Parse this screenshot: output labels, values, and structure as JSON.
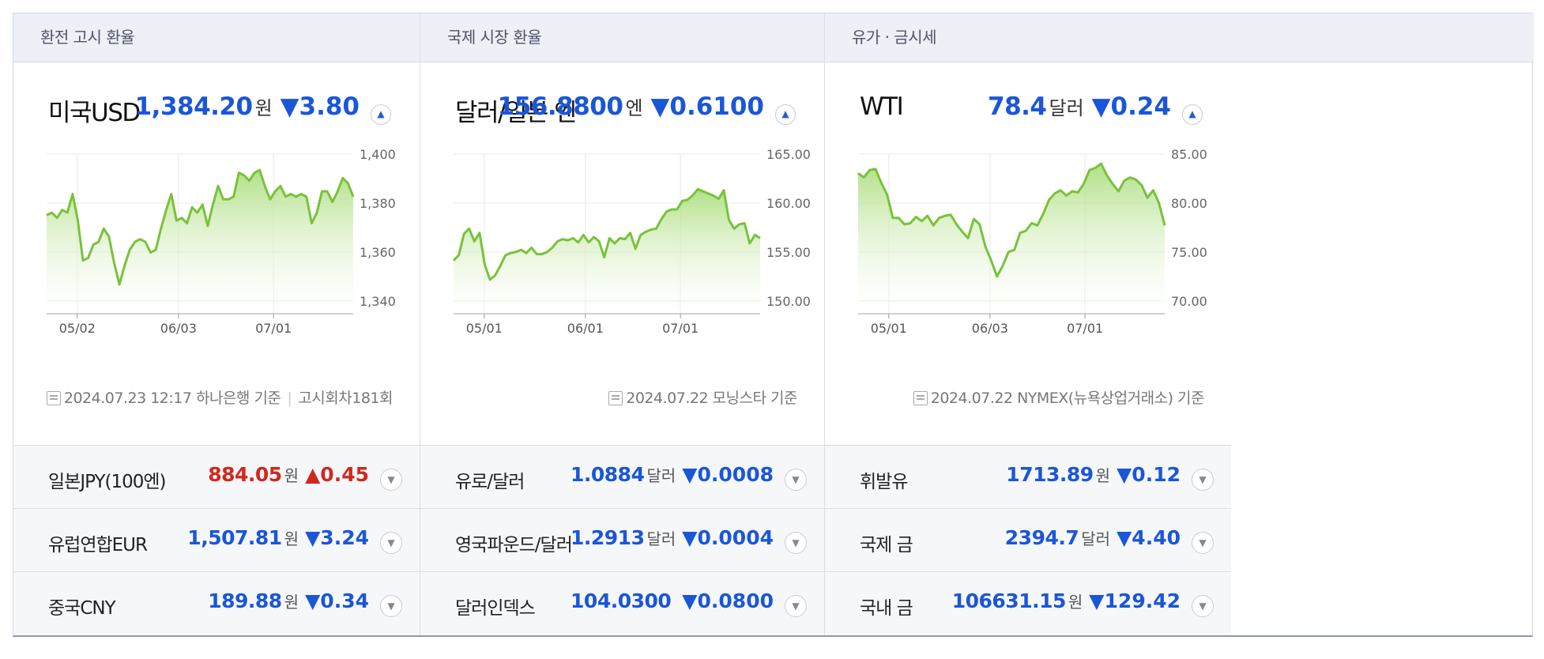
{
  "columns": [
    {
      "header": "환전 고시 환율",
      "main": {
        "title": "미국USD",
        "value": "1,384.20",
        "unit": "원",
        "change": "▼3.80",
        "direction": "down",
        "toggle_icon": "chevron-up-icon"
      },
      "chart_data": {
        "type": "area",
        "x_ticks": [
          "05/02",
          "06/03",
          "07/01"
        ],
        "y_ticks": [
          "1,400",
          "1,380",
          "1,360",
          "1,340"
        ],
        "ylim": [
          1340,
          1400
        ],
        "grid": true,
        "color": "#79c23b",
        "values": [
          1377,
          1378,
          1376,
          1379,
          1378,
          1385,
          1375,
          1360,
          1361,
          1366,
          1367,
          1372,
          1369,
          1359,
          1351,
          1358,
          1364,
          1367,
          1368,
          1367,
          1363,
          1364,
          1372,
          1379,
          1385,
          1375,
          1376,
          1374,
          1380,
          1378,
          1381,
          1373,
          1381,
          1388,
          1383,
          1383,
          1384,
          1393,
          1392,
          1390,
          1393,
          1394,
          1388,
          1383,
          1386,
          1388,
          1384,
          1385,
          1384,
          1385,
          1384,
          1374,
          1378,
          1386,
          1386,
          1382,
          1386,
          1391,
          1389,
          1384
        ]
      },
      "source": {
        "date": "2024.07.23 12:17 하나은행 기준",
        "extra": "고시회차181회",
        "icon": "document-icon"
      },
      "rows": [
        {
          "label": "일본JPY(100엔)",
          "value": "884.05",
          "unit": "원",
          "change": "▲0.45",
          "direction": "up"
        },
        {
          "label": "유럽연합EUR",
          "value": "1,507.81",
          "unit": "원",
          "change": "▼3.24",
          "direction": "down"
        },
        {
          "label": "중국CNY",
          "value": "189.88",
          "unit": "원",
          "change": "▼0.34",
          "direction": "down"
        }
      ]
    },
    {
      "header": "국제 시장 환율",
      "main": {
        "title": "달러/일본 엔",
        "value": "156.8800",
        "unit": "엔",
        "change": "▼0.6100",
        "direction": "down",
        "toggle_icon": "chevron-up-icon"
      },
      "chart_data": {
        "type": "area",
        "x_ticks": [
          "05/01",
          "06/01",
          "07/01"
        ],
        "y_ticks": [
          "165.00",
          "160.00",
          "155.00",
          "150.00"
        ],
        "ylim": [
          150,
          165
        ],
        "grid": true,
        "color": "#79c23b",
        "values": [
          155.0,
          155.5,
          157.5,
          158.0,
          156.8,
          157.6,
          154.6,
          153.2,
          153.6,
          154.5,
          155.5,
          155.7,
          155.8,
          156.0,
          155.7,
          156.2,
          155.6,
          155.6,
          155.8,
          156.2,
          156.8,
          157.0,
          156.9,
          157.1,
          156.7,
          157.4,
          156.7,
          157.2,
          156.8,
          155.3,
          157.1,
          156.6,
          157.1,
          157.0,
          157.6,
          156.1,
          157.4,
          157.7,
          157.9,
          158.0,
          158.9,
          159.6,
          159.8,
          159.8,
          160.6,
          160.7,
          161.1,
          161.7,
          161.5,
          161.3,
          161.1,
          160.8,
          161.6,
          158.8,
          158.0,
          158.4,
          158.5,
          156.6,
          157.4,
          157.1
        ]
      },
      "source": {
        "date": "2024.07.22 모닝스타 기준",
        "icon": "document-icon"
      },
      "rows": [
        {
          "label": "유로/달러",
          "value": "1.0884",
          "unit": "달러",
          "change": "▼0.0008",
          "direction": "down"
        },
        {
          "label": "영국파운드/달러",
          "value": "1.2913",
          "unit": "달러",
          "change": "▼0.0004",
          "direction": "down"
        },
        {
          "label": "달러인덱스",
          "value": "104.0300",
          "unit": "",
          "change": "▼0.0800",
          "direction": "down"
        }
      ]
    },
    {
      "header": "유가 · 금시세",
      "main": {
        "title": "WTI",
        "value": "78.4",
        "unit": "달러",
        "change": "▼0.24",
        "direction": "down",
        "toggle_icon": "chevron-up-icon"
      },
      "chart_data": {
        "type": "area",
        "x_ticks": [
          "05/01",
          "06/03",
          "07/01"
        ],
        "y_ticks": [
          "85.00",
          "80.00",
          "75.00",
          "70.00"
        ],
        "ylim": [
          70,
          85
        ],
        "grid": true,
        "color": "#79c23b",
        "values": [
          83.2,
          82.8,
          83.5,
          83.6,
          82.3,
          81.2,
          79.0,
          79.0,
          78.4,
          78.5,
          79.1,
          78.7,
          79.2,
          78.3,
          79.0,
          79.2,
          79.3,
          78.4,
          77.7,
          77.1,
          78.9,
          78.4,
          76.3,
          75.0,
          73.5,
          74.5,
          75.8,
          76.0,
          77.6,
          77.8,
          78.5,
          78.3,
          79.4,
          80.7,
          81.3,
          81.6,
          81.1,
          81.5,
          81.4,
          82.2,
          83.5,
          83.7,
          84.1,
          83.0,
          82.2,
          81.5,
          82.5,
          82.8,
          82.6,
          82.1,
          80.9,
          81.6,
          80.4,
          78.3
        ]
      },
      "source": {
        "date": "2024.07.22 NYMEX(뉴욕상업거래소) 기준",
        "icon": "document-icon"
      },
      "rows": [
        {
          "label": "휘발유",
          "value": "1713.89",
          "unit": "원",
          "change": "▼0.12",
          "direction": "down"
        },
        {
          "label": "국제 금",
          "value": "2394.7",
          "unit": "달러",
          "change": "▼4.40",
          "direction": "down"
        },
        {
          "label": "국내 금",
          "value": "106631.15",
          "unit": "원",
          "change": "▼129.42",
          "direction": "down"
        }
      ]
    }
  ]
}
